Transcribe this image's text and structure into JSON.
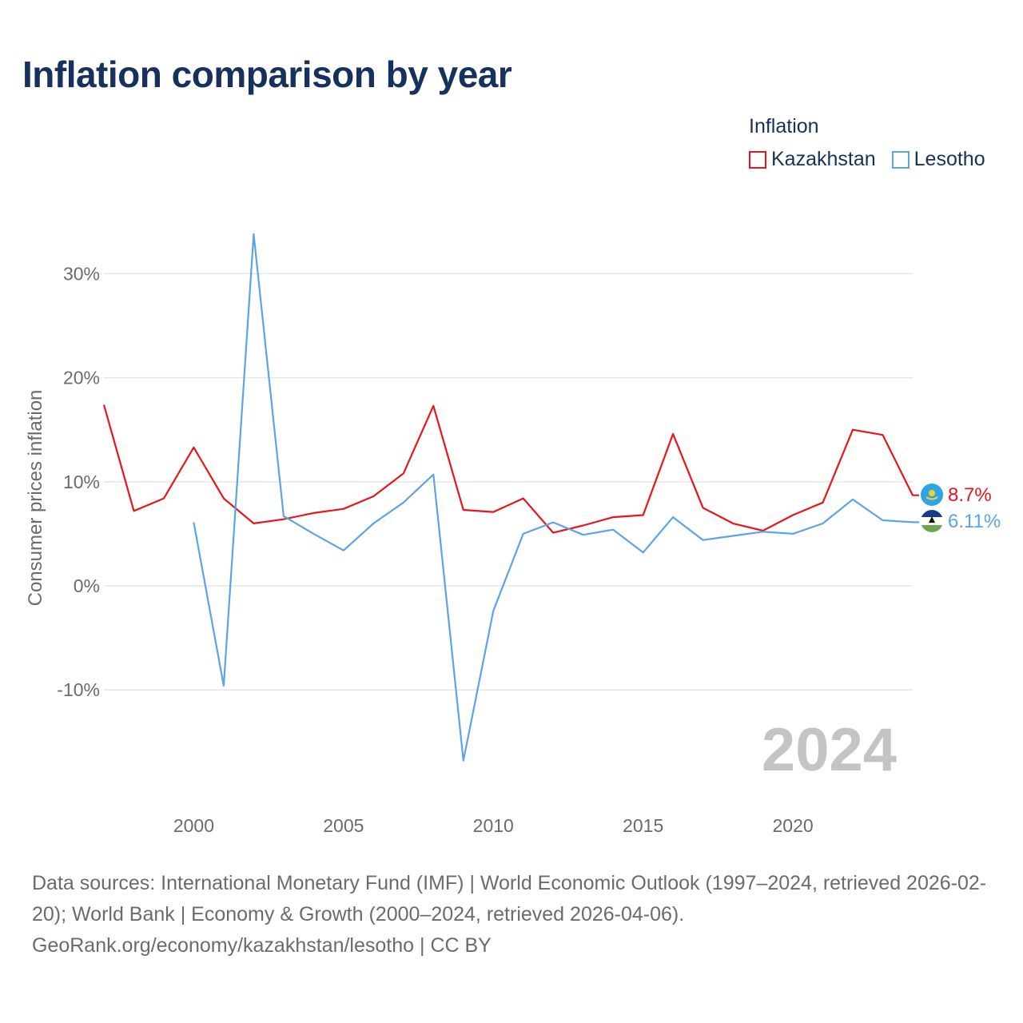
{
  "title": "Inflation comparison by year",
  "legend": {
    "title": "Inflation",
    "items": [
      {
        "label": "Kazakhstan",
        "color": "#e8151b"
      },
      {
        "label": "Lesotho",
        "color": "#5ba4e6"
      }
    ]
  },
  "watermark_year": "2024",
  "footer": {
    "line1": "Data sources: International Monetary Fund (IMF) | World Economic Outlook (1997–2024, retrieved 2026-02-20); World Bank | Economy & Growth (2000–2024, retrieved 2026-04-06).",
    "line2": "GeoRank.org/economy/kazakhstan/lesotho | CC BY"
  },
  "chart_data": {
    "type": "line",
    "title": "Inflation comparison by year",
    "xlabel": "",
    "ylabel": "Consumer prices inflation",
    "xlim": [
      1997,
      2024
    ],
    "ylim": [
      -20,
      35
    ],
    "yticks": [
      -10,
      0,
      10,
      20,
      30
    ],
    "ytick_labels": [
      "-10%",
      "0%",
      "10%",
      "20%",
      "30%"
    ],
    "xticks": [
      2000,
      2005,
      2010,
      2015,
      2020
    ],
    "xtick_labels": [
      "2000",
      "2005",
      "2010",
      "2015",
      "2020"
    ],
    "grid": true,
    "legend_position": "top-right",
    "series": [
      {
        "name": "Kazakhstan",
        "color": "#e8151b",
        "end_label": "8.7%",
        "x": [
          1997,
          1998,
          1999,
          2000,
          2001,
          2002,
          2003,
          2004,
          2005,
          2006,
          2007,
          2008,
          2009,
          2010,
          2011,
          2012,
          2013,
          2014,
          2015,
          2016,
          2017,
          2018,
          2019,
          2020,
          2021,
          2022,
          2023,
          2024
        ],
        "values": [
          17.4,
          7.2,
          8.4,
          13.3,
          8.4,
          6.0,
          6.4,
          7.0,
          7.4,
          8.6,
          10.8,
          17.3,
          7.3,
          7.1,
          8.4,
          5.1,
          5.8,
          6.6,
          6.8,
          14.6,
          7.5,
          6.0,
          5.3,
          6.8,
          8.0,
          15.0,
          14.5,
          8.7
        ]
      },
      {
        "name": "Lesotho",
        "color": "#5ba4e6",
        "end_label": "6.11%",
        "x": [
          2000,
          2001,
          2002,
          2003,
          2004,
          2005,
          2006,
          2007,
          2008,
          2009,
          2010,
          2011,
          2012,
          2013,
          2014,
          2015,
          2016,
          2017,
          2018,
          2019,
          2020,
          2021,
          2022,
          2023,
          2024
        ],
        "values": [
          6.1,
          -9.6,
          33.8,
          6.7,
          5.0,
          3.4,
          6.0,
          8.0,
          10.7,
          -16.8,
          -2.4,
          5.0,
          6.1,
          4.9,
          5.4,
          3.2,
          6.6,
          4.4,
          4.8,
          5.2,
          5.0,
          6.0,
          8.3,
          6.3,
          6.11
        ]
      }
    ]
  }
}
